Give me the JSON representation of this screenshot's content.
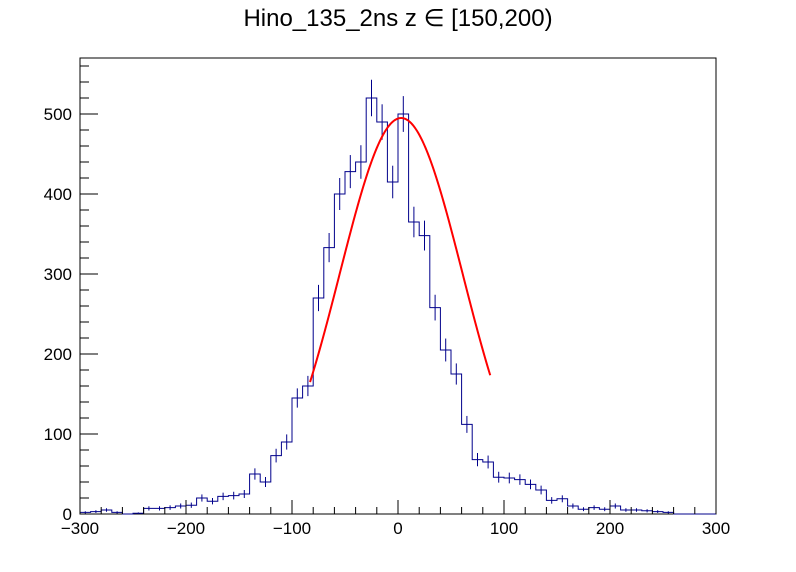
{
  "chart_data": {
    "type": "bar",
    "title": "Hino_135_2ns z  ∈ [150,200)",
    "xlabel": "",
    "ylabel": "",
    "xlim": [
      -300,
      300
    ],
    "ylim": [
      0,
      570
    ],
    "bin_width": 10,
    "x_ticks": [
      -300,
      -200,
      -100,
      0,
      100,
      200,
      300
    ],
    "x_tick_labels": [
      "−300",
      "−200",
      "−100",
      "0",
      "100",
      "200",
      "300"
    ],
    "y_ticks": [
      0,
      100,
      200,
      300,
      400,
      500
    ],
    "y_tick_labels": [
      "0",
      "100",
      "200",
      "300",
      "400",
      "500"
    ],
    "grid": false,
    "legend": "none",
    "colors": {
      "histogram": "#00008b",
      "fit": "#ff0000",
      "axes": "#000000"
    },
    "histogram": {
      "name": "",
      "bin_centers": [
        -295,
        -285,
        -275,
        -265,
        -255,
        -245,
        -235,
        -225,
        -215,
        -205,
        -195,
        -185,
        -175,
        -165,
        -155,
        -145,
        -135,
        -125,
        -115,
        -105,
        -95,
        -85,
        -75,
        -65,
        -55,
        -45,
        -35,
        -25,
        -15,
        -5,
        5,
        15,
        25,
        35,
        45,
        55,
        65,
        75,
        85,
        95,
        105,
        115,
        125,
        135,
        145,
        155,
        165,
        175,
        185,
        195,
        205,
        215,
        225,
        235,
        245,
        255,
        265,
        275,
        285,
        295
      ],
      "counts": [
        2,
        3,
        5,
        2,
        0,
        1,
        7,
        7,
        8,
        10,
        11,
        20,
        16,
        22,
        23,
        25,
        50,
        40,
        73,
        90,
        145,
        160,
        270,
        333,
        400,
        428,
        440,
        520,
        490,
        415,
        500,
        365,
        348,
        258,
        205,
        175,
        112,
        68,
        65,
        46,
        45,
        43,
        37,
        30,
        17,
        19,
        10,
        6,
        8,
        6,
        10,
        5,
        5,
        4,
        3,
        2,
        0,
        0,
        0,
        0
      ]
    },
    "fit": {
      "name": "",
      "type": "gaussian",
      "amplitude": 495,
      "mean": 3,
      "sigma": 58,
      "range": [
        -83,
        87
      ]
    }
  }
}
